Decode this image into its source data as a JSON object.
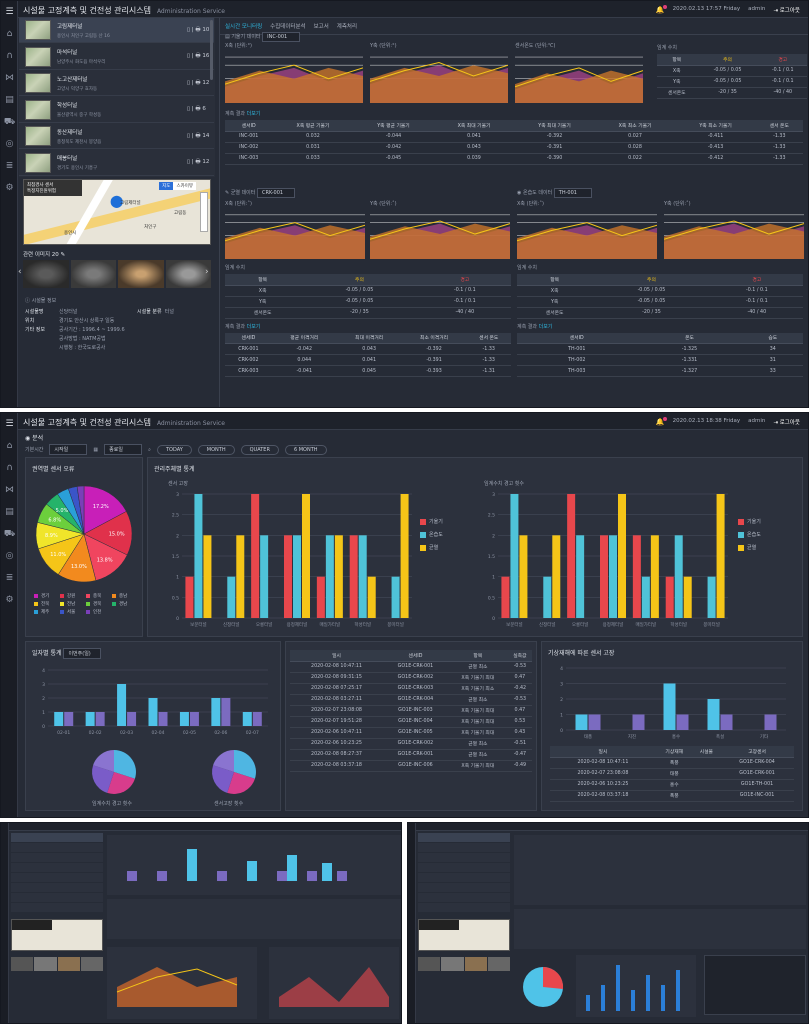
{
  "app": {
    "title": "시설물 고정계측 및 건전성 관리시스템",
    "subtitle": "Administration Service",
    "datetime1": "2020.02.13 17:57 Friday",
    "datetime2": "2020.02.13 18:38 Friday",
    "user": "admin",
    "logout": "로그아웃"
  },
  "nav": {
    "icons": [
      "menu-icon",
      "home-icon",
      "tunnel-icon",
      "bridge-icon",
      "table-icon",
      "truck-icon",
      "sensor-icon",
      "list-icon",
      "gear-icon"
    ]
  },
  "facilities": [
    {
      "name": "고림제터널",
      "addr": "용인시 처인구 고림동 산 16",
      "icons": "▯ | 🖶 10"
    },
    {
      "name": "마석터널",
      "addr": "남양주시 화도읍 마석우리",
      "icons": "▯ | 🖶 16"
    },
    {
      "name": "노고산제터널",
      "addr": "고양시 덕양구 효자동",
      "icons": "▯ | 🖶 12"
    },
    {
      "name": "학성터널",
      "addr": "울산광역시 중구 학성동",
      "icons": "▯ | 🖶 6"
    },
    {
      "name": "동산제터널",
      "addr": "충청북도 제천시 봉양읍",
      "icons": "▯ | 🖶 14"
    },
    {
      "name": "매봉터널",
      "addr": "경기도 용인시 기흥구",
      "icons": "▯ | 🖶 12"
    }
  ],
  "map": {
    "tooltip1": "최첨경사 센서",
    "tooltip2": "특정지진원위험",
    "btn_map": "지도",
    "btn_sky": "스카이뷰",
    "labels": [
      "고림제터널",
      "처인구",
      "용인시",
      "고림동"
    ]
  },
  "photos": {
    "title": "관련 이미지 20"
  },
  "facility_info": {
    "title": "시설물 정보",
    "rows": [
      [
        "시설물명",
        "신당터널"
      ],
      [
        "위치",
        "경기도 안산시 상록구 일동"
      ],
      [
        "기타 정보",
        "공사기간 : 1996.4 ~ 1999.6"
      ],
      [
        "",
        "공사방법 : NATM공법"
      ],
      [
        "",
        "시행청 : 한국도로공사"
      ]
    ],
    "type_label": "시설물 분류",
    "type_value": "터널"
  },
  "tabs1": [
    "실시간 모니터링",
    "수집데이터분석",
    "보고서",
    "계측처리"
  ],
  "tilt": {
    "title": "기울기 데이터",
    "select": "INC-001",
    "charts": [
      "X축 (단위:°)",
      "Y축 (단위:°)",
      "센서온도 (단위:℃)"
    ]
  },
  "threshold": {
    "title": "임계 수치",
    "headers": [
      "항목",
      "주의",
      "경고"
    ],
    "rows": [
      [
        "X축",
        "-0.05 / 0.05",
        "-0.1 / 0.1"
      ],
      [
        "Y축",
        "-0.05 / 0.05",
        "-0.1 / 0.1"
      ],
      [
        "센서온도",
        "-20 / 35",
        "-40 / 40"
      ]
    ]
  },
  "calc1": {
    "title": "계측 결과",
    "more": "더보기",
    "headers": [
      "센서ID",
      "X축 평균 기울기",
      "Y축 평균 기울기",
      "X축 최대 기울기",
      "Y축 최대 기울기",
      "X축 최소 기울기",
      "Y축 최소 기울기",
      "센서 온도"
    ],
    "rows": [
      [
        "INC-001",
        "0.032",
        "-0.044",
        "0.041",
        "-0.392",
        "0.027",
        "-0.411",
        "-1.33"
      ],
      [
        "INC-002",
        "0.031",
        "-0.042",
        "0.043",
        "-0.391",
        "0.028",
        "-0.413",
        "-1.33"
      ],
      [
        "INC-003",
        "0.033",
        "-0.045",
        "0.039",
        "-0.390",
        "0.022",
        "-0.412",
        "-1.33"
      ]
    ]
  },
  "crack": {
    "title": "균열 데이터",
    "select": "CRK-001",
    "charts": [
      "X축 (단위:˚)",
      "Y축 (단위:˚)"
    ],
    "th_rows": [
      [
        "X축",
        "-0.05 / 0.05",
        "-0.1 / 0.1"
      ],
      [
        "Y축",
        "-0.05 / 0.05",
        "-0.1 / 0.1"
      ],
      [
        "센서온도",
        "-20 / 35",
        "-40 / 40"
      ]
    ],
    "headers": [
      "센서ID",
      "평균 이격거리",
      "최대 이격거리",
      "최소 이격거리",
      "센서 온도"
    ],
    "rows": [
      [
        "CRK-001",
        "-0.042",
        "0.043",
        "-0.392",
        "-1.33"
      ],
      [
        "CRK-002",
        "0.044",
        "0.041",
        "-0.391",
        "-1.33"
      ],
      [
        "CRK-003",
        "-0.041",
        "0.045",
        "-0.393",
        "-1.31"
      ]
    ]
  },
  "humid": {
    "title": "온습도 데이터",
    "select": "TH-001",
    "charts": [
      "X축 (단위:˚)",
      "Y축 (단위:˚)"
    ],
    "th_rows": [
      [
        "X축",
        "-0.05 / 0.05",
        "-0.1 / 0.1"
      ],
      [
        "Y축",
        "-0.05 / 0.05",
        "-0.1 / 0.1"
      ],
      [
        "센서온도",
        "-20 / 35",
        "-40 / 40"
      ]
    ],
    "headers": [
      "센서ID",
      "온도",
      "습도"
    ],
    "rows": [
      [
        "TH-001",
        "-1.325",
        "34"
      ],
      [
        "TH-002",
        "-1.331",
        "31"
      ],
      [
        "TH-003",
        "-1.327",
        "33"
      ]
    ]
  },
  "analysis": {
    "title": "분석",
    "filter_label": "기본시간",
    "filter_value": "시작일",
    "end_value": "종료일",
    "buttons": [
      "TODAY",
      "MONTH",
      "QUATER",
      "6 MONTH"
    ]
  },
  "pie_panel": {
    "title": "권역별 센서 오류",
    "slices": [
      17.2,
      15.0,
      13.8,
      13.0,
      11.0,
      8.9,
      6.8,
      5.0,
      4.0,
      3.0,
      2.3
    ],
    "colors": [
      "#c81fb8",
      "#e0314b",
      "#f0455f",
      "#f28a1e",
      "#f5c518",
      "#f0e52a",
      "#6ccf3c",
      "#25b36a",
      "#2a9fd8",
      "#3a55c8",
      "#7a3fb8"
    ],
    "legend": [
      "경기",
      "강원",
      "충북",
      "충남",
      "전북",
      "전남",
      "경북",
      "경남",
      "제주",
      "서울",
      "인천"
    ]
  },
  "bar_panel": {
    "title": "관리주체별 통계",
    "left_title": "센서 고장",
    "right_title": "임계수치 경고 횟수",
    "legend": [
      "기울기",
      "온습도",
      "균열"
    ],
    "colors": [
      "#e8474c",
      "#4fc3d8",
      "#f5c518"
    ]
  },
  "daily": {
    "title": "일자별 통계",
    "select": "이번주(일)",
    "pie_labels": [
      "임계수치 경고 횟수",
      "센서고장 횟수"
    ]
  },
  "alarms": {
    "headers": [
      "일시",
      "센서ID",
      "항목",
      "실측값"
    ],
    "rows": [
      [
        "2020-02-08 10:47:11",
        "GO1E-CRK-001",
        "균열 최소",
        "-0.53"
      ],
      [
        "2020-02-08 09:31:15",
        "GO1E-CRK-002",
        "X축 기울기 최대",
        "0.47"
      ],
      [
        "2020-02-08 07:25:17",
        "GO1E-CRK-003",
        "X축 기울기 최소",
        "-0.42"
      ],
      [
        "2020-02-08 03:27:11",
        "GO1E-CRK-004",
        "균열 최소",
        "-0.53"
      ],
      [
        "2020-02-07 23:08:08",
        "GO1E-INC-003",
        "X축 기울기 최대",
        "0.47"
      ],
      [
        "2020-02-07 19:51:28",
        "GO1E-INC-004",
        "X축 기울기 최대",
        "0.53"
      ],
      [
        "2020-02-06 10:47:11",
        "GO1E-INC-005",
        "X축 기울기 최대",
        "0.43"
      ],
      [
        "2020-02-06 10:23:25",
        "GO1E-CRK-002",
        "균열 최소",
        "-0.51"
      ],
      [
        "2020-02-08 08:27:37",
        "GO1E-CRK-001",
        "균열 최소",
        "-0.47"
      ],
      [
        "2020-02-08 03:37:18",
        "GO1E-INC-006",
        "X축 기울기 최대",
        "-0.49"
      ]
    ]
  },
  "weather": {
    "title": "기상재해에 따른 센서 고장",
    "categories": [
      "태풍",
      "지진",
      "홍수",
      "폭설",
      "기타"
    ],
    "headers": [
      "일시",
      "기상재해",
      "시설물",
      "고장센서"
    ],
    "rows": [
      [
        "2020-02-08 10:47:11",
        "폭풍",
        "",
        "GO1E-CRK-004"
      ],
      [
        "2020-02-07 23:08:08",
        "태풍",
        "",
        "GO1E-CRK-001"
      ],
      [
        "2020-02-06 10:23:25",
        "홍수",
        "",
        "GO1E-TH-001"
      ],
      [
        "2020-02-08 03:37:18",
        "폭풍",
        "",
        "GO1E-INC-001"
      ]
    ]
  },
  "chart_data": [
    {
      "type": "bar",
      "title": "센서 고장",
      "categories": [
        "보문터널",
        "신정터널",
        "오룡터널",
        "용정제터널",
        "매일가터널",
        "학성터널",
        "봉미터널"
      ],
      "series": [
        {
          "name": "기울기",
          "values": [
            1,
            0,
            3,
            2,
            1,
            2,
            0
          ]
        },
        {
          "name": "온습도",
          "values": [
            3,
            1,
            2,
            2,
            2,
            2,
            1
          ]
        },
        {
          "name": "균열",
          "values": [
            2,
            2,
            0,
            3,
            2,
            1,
            3
          ]
        }
      ],
      "ylim": [
        0,
        3
      ]
    },
    {
      "type": "bar",
      "title": "임계수치 경고 횟수",
      "categories": [
        "보문터널",
        "신정터널",
        "오룡터널",
        "용정제터널",
        "매일가터널",
        "학성터널",
        "봉미터널"
      ],
      "series": [
        {
          "name": "기울기",
          "values": [
            1,
            0,
            3,
            2,
            2,
            1,
            0
          ]
        },
        {
          "name": "온습도",
          "values": [
            3,
            1,
            2,
            2,
            1,
            2,
            1
          ]
        },
        {
          "name": "균열",
          "values": [
            2,
            2,
            0,
            3,
            2,
            1,
            3
          ]
        }
      ],
      "ylim": [
        0,
        3
      ]
    },
    {
      "type": "bar",
      "title": "일자별 통계",
      "categories": [
        "02-01",
        "02-02",
        "02-03",
        "02-04",
        "02-05",
        "02-06",
        "02-07"
      ],
      "series": [
        {
          "values": [
            1,
            1,
            3,
            2,
            1,
            2,
            1
          ]
        },
        {
          "values": [
            1,
            1,
            1,
            1,
            1,
            2,
            1
          ]
        }
      ],
      "ylim": [
        0,
        4
      ]
    },
    {
      "type": "bar",
      "title": "기상재해에 따른 센서 고장",
      "categories": [
        "태풍",
        "지진",
        "홍수",
        "폭설",
        "기타"
      ],
      "series": [
        {
          "values": [
            1,
            0,
            3,
            2,
            0
          ]
        },
        {
          "values": [
            1,
            1,
            1,
            1,
            1
          ]
        }
      ],
      "ylim": [
        0,
        4
      ]
    }
  ]
}
